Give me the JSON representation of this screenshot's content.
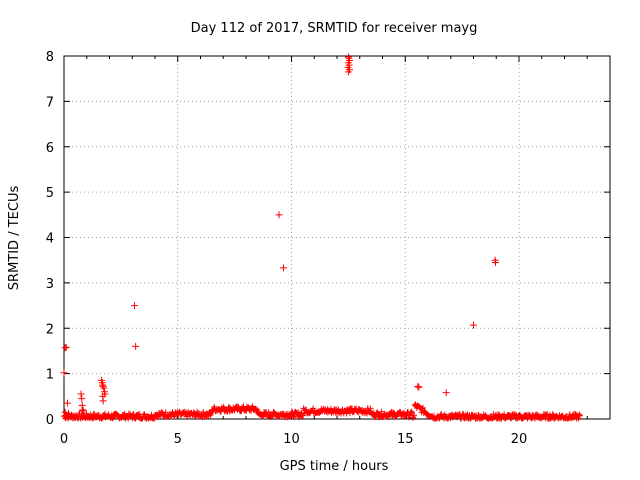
{
  "chart_data": {
    "type": "scatter",
    "title": "Day 112 of 2017, SRMTID for receiver mayg",
    "xlabel": "GPS time / hours",
    "ylabel": "SRMTID / TECUs",
    "xlim": [
      0,
      24
    ],
    "ylim": [
      0,
      8
    ],
    "xticks": [
      0,
      5,
      10,
      15,
      20
    ],
    "yticks": [
      0,
      1,
      2,
      3,
      4,
      5,
      6,
      7,
      8
    ],
    "grid": true,
    "marker": "plus",
    "color": "#ff0000",
    "series": [
      {
        "x": [
          0.0,
          0.05,
          0.1,
          0.15,
          0.2,
          0.1,
          0.05,
          0.75,
          0.78,
          0.8,
          0.82,
          0.85,
          1.65,
          1.68,
          1.7,
          1.72,
          1.75,
          1.78,
          1.8,
          1.7,
          1.72,
          3.1,
          3.15,
          9.45,
          9.65,
          12.5,
          12.52,
          12.55,
          12.5,
          12.53,
          12.48,
          12.55,
          12.5,
          15.55,
          15.6,
          16.8,
          18.0,
          18.95,
          18.97
        ],
        "y": [
          1.02,
          1.57,
          1.58,
          0.35,
          0.12,
          0.08,
          0.15,
          0.55,
          0.45,
          0.3,
          0.2,
          0.18,
          0.85,
          0.8,
          0.75,
          0.72,
          0.68,
          0.6,
          0.55,
          0.5,
          0.4,
          2.5,
          1.6,
          4.5,
          3.33,
          7.98,
          7.95,
          7.9,
          7.85,
          7.8,
          7.75,
          7.7,
          7.65,
          0.72,
          0.7,
          0.58,
          2.07,
          3.5,
          3.45
        ]
      }
    ]
  }
}
